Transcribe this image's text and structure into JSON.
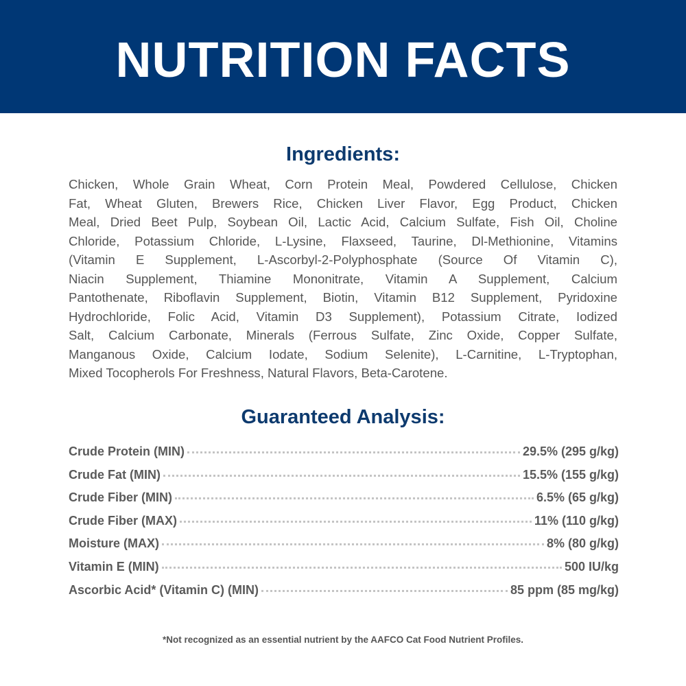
{
  "header": {
    "title": "NUTRITION FACTS",
    "background": "#003775"
  },
  "ingredients": {
    "title": "Ingredients:",
    "lines": [
      "Chicken, Whole Grain Wheat, Corn Protein Meal, Powdered Cellulose, Chicken",
      "Fat, Wheat Gluten, Brewers Rice, Chicken Liver Flavor, Egg Product, Chicken",
      "Meal, Dried Beet Pulp, Soybean Oil, Lactic Acid, Calcium Sulfate, Fish Oil, Choline",
      "Chloride, Potassium Chloride, L-Lysine, Flaxseed, Taurine, Dl-Methionine, Vitamins",
      "(Vitamin E Supplement, L-Ascorbyl-2-Polyphosphate (Source Of Vitamin C),",
      "Niacin Supplement, Thiamine Mononitrate, Vitamin A Supplement, Calcium",
      "Pantothenate, Riboflavin Supplement, Biotin, Vitamin B12 Supplement, Pyridoxine",
      "Hydrochloride, Folic Acid, Vitamin D3 Supplement), Potassium Citrate, Iodized",
      "Salt, Calcium Carbonate, Minerals (Ferrous Sulfate, Zinc Oxide, Copper Sulfate,",
      "Manganous Oxide, Calcium Iodate, Sodium Selenite), L-Carnitine, L-Tryptophan,",
      "Mixed Tocopherols For Freshness, Natural Flavors, Beta-Carotene."
    ]
  },
  "analysis": {
    "title": "Guaranteed Analysis:",
    "rows": [
      {
        "label": "Crude Protein (MIN)",
        "value": "29.5% (295 g/kg)"
      },
      {
        "label": "Crude Fat (MIN)",
        "value": "15.5% (155 g/kg)"
      },
      {
        "label": "Crude Fiber (MIN)",
        "value": "6.5% (65 g/kg)"
      },
      {
        "label": "Crude Fiber (MAX)",
        "value": "11% (110 g/kg)"
      },
      {
        "label": "Moisture (MAX)",
        "value": "8% (80 g/kg)"
      },
      {
        "label": "Vitamin E (MIN)",
        "value": "500 IU/kg"
      },
      {
        "label": "Ascorbic Acid* (Vitamin C) (MIN)",
        "value": "85 ppm (85 mg/kg)"
      }
    ]
  },
  "footnote": "*Not recognized as an essential nutrient by the AAFCO Cat Food Nutrient Profiles."
}
